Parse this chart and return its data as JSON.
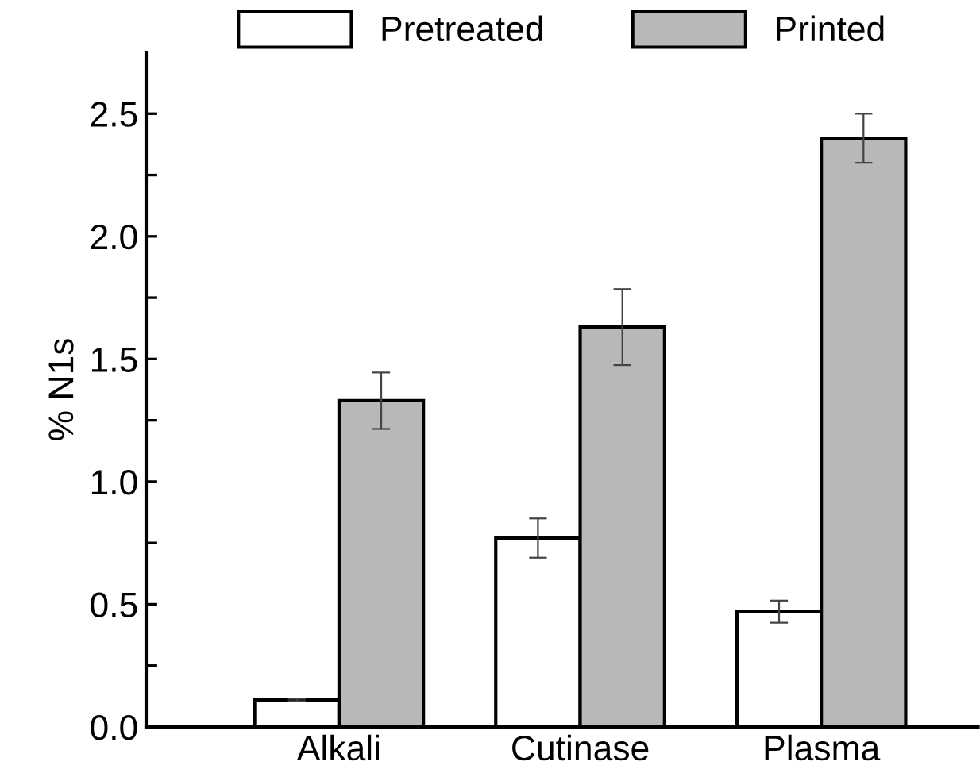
{
  "chart_data": {
    "type": "bar",
    "ylabel": "% N1s",
    "categories": [
      "Alkali",
      "Cutinase",
      "Plasma"
    ],
    "series": [
      {
        "name": "Pretreated",
        "color": "#ffffff",
        "values": [
          0.11,
          0.77,
          0.47
        ],
        "errors": [
          0.005,
          0.08,
          0.045
        ]
      },
      {
        "name": "Printed",
        "color": "#b8b8b8",
        "values": [
          1.33,
          1.63,
          2.4
        ],
        "errors": [
          0.115,
          0.155,
          0.1
        ]
      }
    ],
    "ylim": [
      0,
      2.75
    ],
    "yticks": [
      {
        "value": 0,
        "label": "0.0"
      },
      {
        "value": 0.25,
        "label": null
      },
      {
        "value": 0.5,
        "label": "0.5"
      },
      {
        "value": 0.75,
        "label": null
      },
      {
        "value": 1.0,
        "label": "1.0"
      },
      {
        "value": 1.25,
        "label": null
      },
      {
        "value": 1.5,
        "label": "1.5"
      },
      {
        "value": 1.75,
        "label": null
      },
      {
        "value": 2.0,
        "label": "2.0"
      },
      {
        "value": 2.25,
        "label": null
      },
      {
        "value": 2.5,
        "label": "2.5"
      }
    ],
    "grid": false,
    "legend": "top"
  }
}
